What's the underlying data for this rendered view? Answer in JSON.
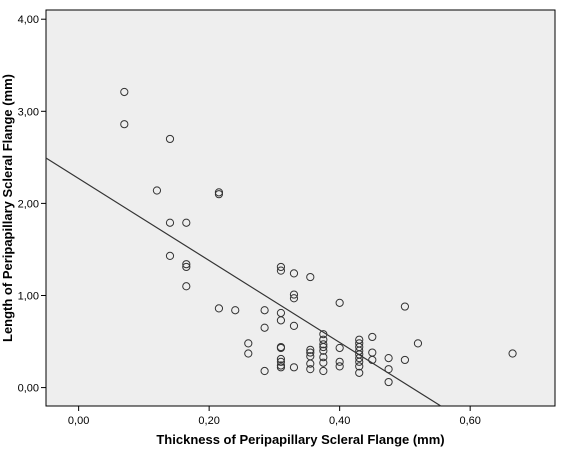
{
  "chart_data": {
    "type": "scatter",
    "xlabel": "Thickness of Peripapillary Scleral Flange (mm)",
    "ylabel": "Length of Peripapillary Scleral Flange (mm)",
    "xlim": [
      -0.05,
      0.73
    ],
    "ylim": [
      -0.2,
      4.1
    ],
    "x_ticks": [
      "0,00",
      "0,20",
      "0,40",
      "0,60"
    ],
    "x_tick_values": [
      0,
      0.2,
      0.4,
      0.6
    ],
    "y_ticks": [
      "0,00",
      "1,00",
      "2,00",
      "3,00",
      "4,00"
    ],
    "y_tick_values": [
      0,
      1,
      2,
      3,
      4
    ],
    "grid": false,
    "plot_background": "#eeeeee",
    "marker_color": "#333333",
    "fit_line": {
      "intercept": 2.27,
      "slope": -4.45,
      "color": "#333333"
    },
    "points": [
      {
        "x": 0.07,
        "y": 3.21
      },
      {
        "x": 0.07,
        "y": 2.86
      },
      {
        "x": 0.14,
        "y": 2.7
      },
      {
        "x": 0.12,
        "y": 2.14
      },
      {
        "x": 0.14,
        "y": 1.79
      },
      {
        "x": 0.165,
        "y": 1.79
      },
      {
        "x": 0.215,
        "y": 2.12
      },
      {
        "x": 0.215,
        "y": 2.1
      },
      {
        "x": 0.14,
        "y": 1.43
      },
      {
        "x": 0.165,
        "y": 1.34
      },
      {
        "x": 0.165,
        "y": 1.31
      },
      {
        "x": 0.165,
        "y": 1.1
      },
      {
        "x": 0.215,
        "y": 0.86
      },
      {
        "x": 0.24,
        "y": 0.84
      },
      {
        "x": 0.26,
        "y": 0.48
      },
      {
        "x": 0.26,
        "y": 0.37
      },
      {
        "x": 0.285,
        "y": 0.84
      },
      {
        "x": 0.285,
        "y": 0.65
      },
      {
        "x": 0.285,
        "y": 0.18
      },
      {
        "x": 0.31,
        "y": 1.31
      },
      {
        "x": 0.31,
        "y": 1.27
      },
      {
        "x": 0.31,
        "y": 0.81
      },
      {
        "x": 0.31,
        "y": 0.73
      },
      {
        "x": 0.31,
        "y": 0.44
      },
      {
        "x": 0.31,
        "y": 0.43
      },
      {
        "x": 0.31,
        "y": 0.31
      },
      {
        "x": 0.31,
        "y": 0.28
      },
      {
        "x": 0.31,
        "y": 0.24
      },
      {
        "x": 0.31,
        "y": 0.22
      },
      {
        "x": 0.33,
        "y": 1.24
      },
      {
        "x": 0.33,
        "y": 1.01
      },
      {
        "x": 0.33,
        "y": 0.97
      },
      {
        "x": 0.33,
        "y": 0.67
      },
      {
        "x": 0.33,
        "y": 0.22
      },
      {
        "x": 0.355,
        "y": 1.2
      },
      {
        "x": 0.355,
        "y": 0.41
      },
      {
        "x": 0.355,
        "y": 0.38
      },
      {
        "x": 0.355,
        "y": 0.34
      },
      {
        "x": 0.355,
        "y": 0.26
      },
      {
        "x": 0.355,
        "y": 0.2
      },
      {
        "x": 0.375,
        "y": 0.58
      },
      {
        "x": 0.375,
        "y": 0.52
      },
      {
        "x": 0.375,
        "y": 0.47
      },
      {
        "x": 0.375,
        "y": 0.44
      },
      {
        "x": 0.375,
        "y": 0.4
      },
      {
        "x": 0.375,
        "y": 0.33
      },
      {
        "x": 0.375,
        "y": 0.27
      },
      {
        "x": 0.375,
        "y": 0.18
      },
      {
        "x": 0.4,
        "y": 0.92
      },
      {
        "x": 0.4,
        "y": 0.43
      },
      {
        "x": 0.4,
        "y": 0.28
      },
      {
        "x": 0.4,
        "y": 0.23
      },
      {
        "x": 0.43,
        "y": 0.52
      },
      {
        "x": 0.43,
        "y": 0.48
      },
      {
        "x": 0.43,
        "y": 0.44
      },
      {
        "x": 0.43,
        "y": 0.4
      },
      {
        "x": 0.43,
        "y": 0.36
      },
      {
        "x": 0.43,
        "y": 0.32
      },
      {
        "x": 0.43,
        "y": 0.28
      },
      {
        "x": 0.43,
        "y": 0.23
      },
      {
        "x": 0.43,
        "y": 0.16
      },
      {
        "x": 0.45,
        "y": 0.55
      },
      {
        "x": 0.45,
        "y": 0.38
      },
      {
        "x": 0.45,
        "y": 0.3
      },
      {
        "x": 0.475,
        "y": 0.32
      },
      {
        "x": 0.475,
        "y": 0.2
      },
      {
        "x": 0.475,
        "y": 0.06
      },
      {
        "x": 0.5,
        "y": 0.88
      },
      {
        "x": 0.5,
        "y": 0.3
      },
      {
        "x": 0.52,
        "y": 0.48
      },
      {
        "x": 0.665,
        "y": 0.37
      }
    ]
  }
}
